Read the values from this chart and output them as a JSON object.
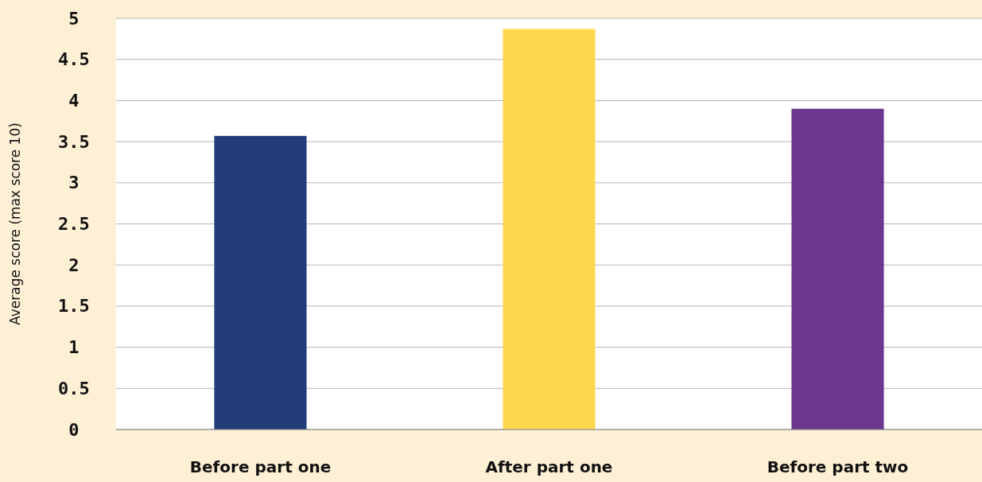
{
  "chart_data": {
    "type": "bar",
    "ylabel": "Average score (max score 10)",
    "categories": [
      "Before part one",
      "After part one",
      "Before part two"
    ],
    "values": [
      3.57,
      4.87,
      3.9
    ],
    "colors": [
      "#233d7b",
      "#ffd84d",
      "#6c368c"
    ],
    "ylim": [
      0,
      5
    ],
    "yticks": [
      0,
      0.5,
      1,
      1.5,
      2,
      2.5,
      3,
      3.5,
      4,
      4.5,
      5
    ],
    "grid": "y"
  }
}
